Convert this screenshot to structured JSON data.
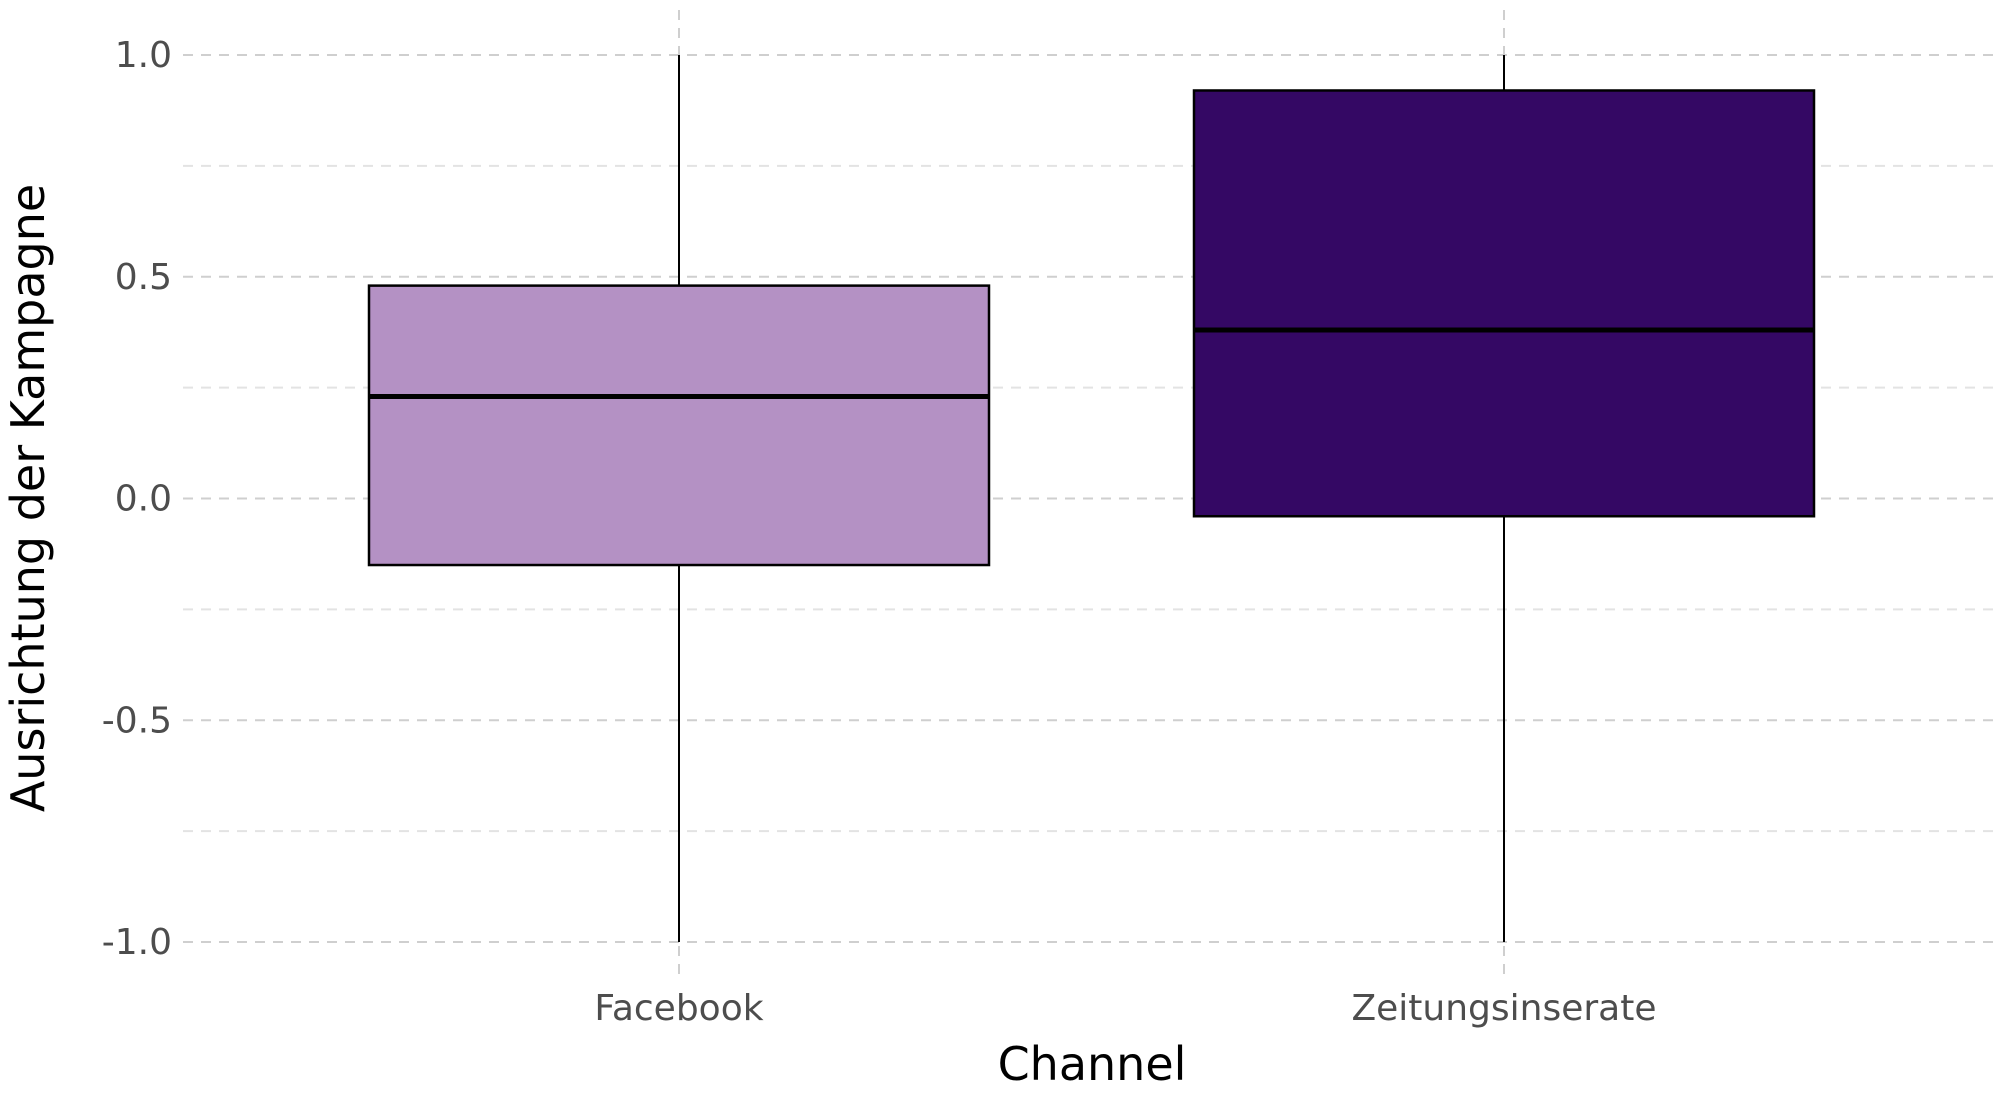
{
  "chart_data": {
    "type": "box",
    "xlabel": "Channel",
    "ylabel": "Ausrichtung der Kampagne",
    "ylim": [
      -1.05,
      1.05
    ],
    "y_ticks": [
      1.0,
      0.5,
      0.0,
      -0.5,
      -1.0
    ],
    "y_tick_labels": [
      "1.0",
      "0.5",
      "0.0",
      "-0.5",
      "-1.0"
    ],
    "y_minor_ticks": [
      0.75,
      0.25,
      -0.25,
      -0.75
    ],
    "grid": true,
    "legend": "none",
    "categories": [
      "Facebook",
      "Zeitungsinserate"
    ],
    "boxes": [
      {
        "category": "Facebook",
        "whisker_low": -1.0,
        "q1": -0.15,
        "median": 0.23,
        "q3": 0.48,
        "whisker_high": 1.0,
        "color": "#b491c4"
      },
      {
        "category": "Zeitungsinserate",
        "whisker_low": -1.0,
        "q1": -0.04,
        "median": 0.38,
        "q3": 0.92,
        "whisker_high": 1.0,
        "color": "#340864"
      }
    ]
  }
}
